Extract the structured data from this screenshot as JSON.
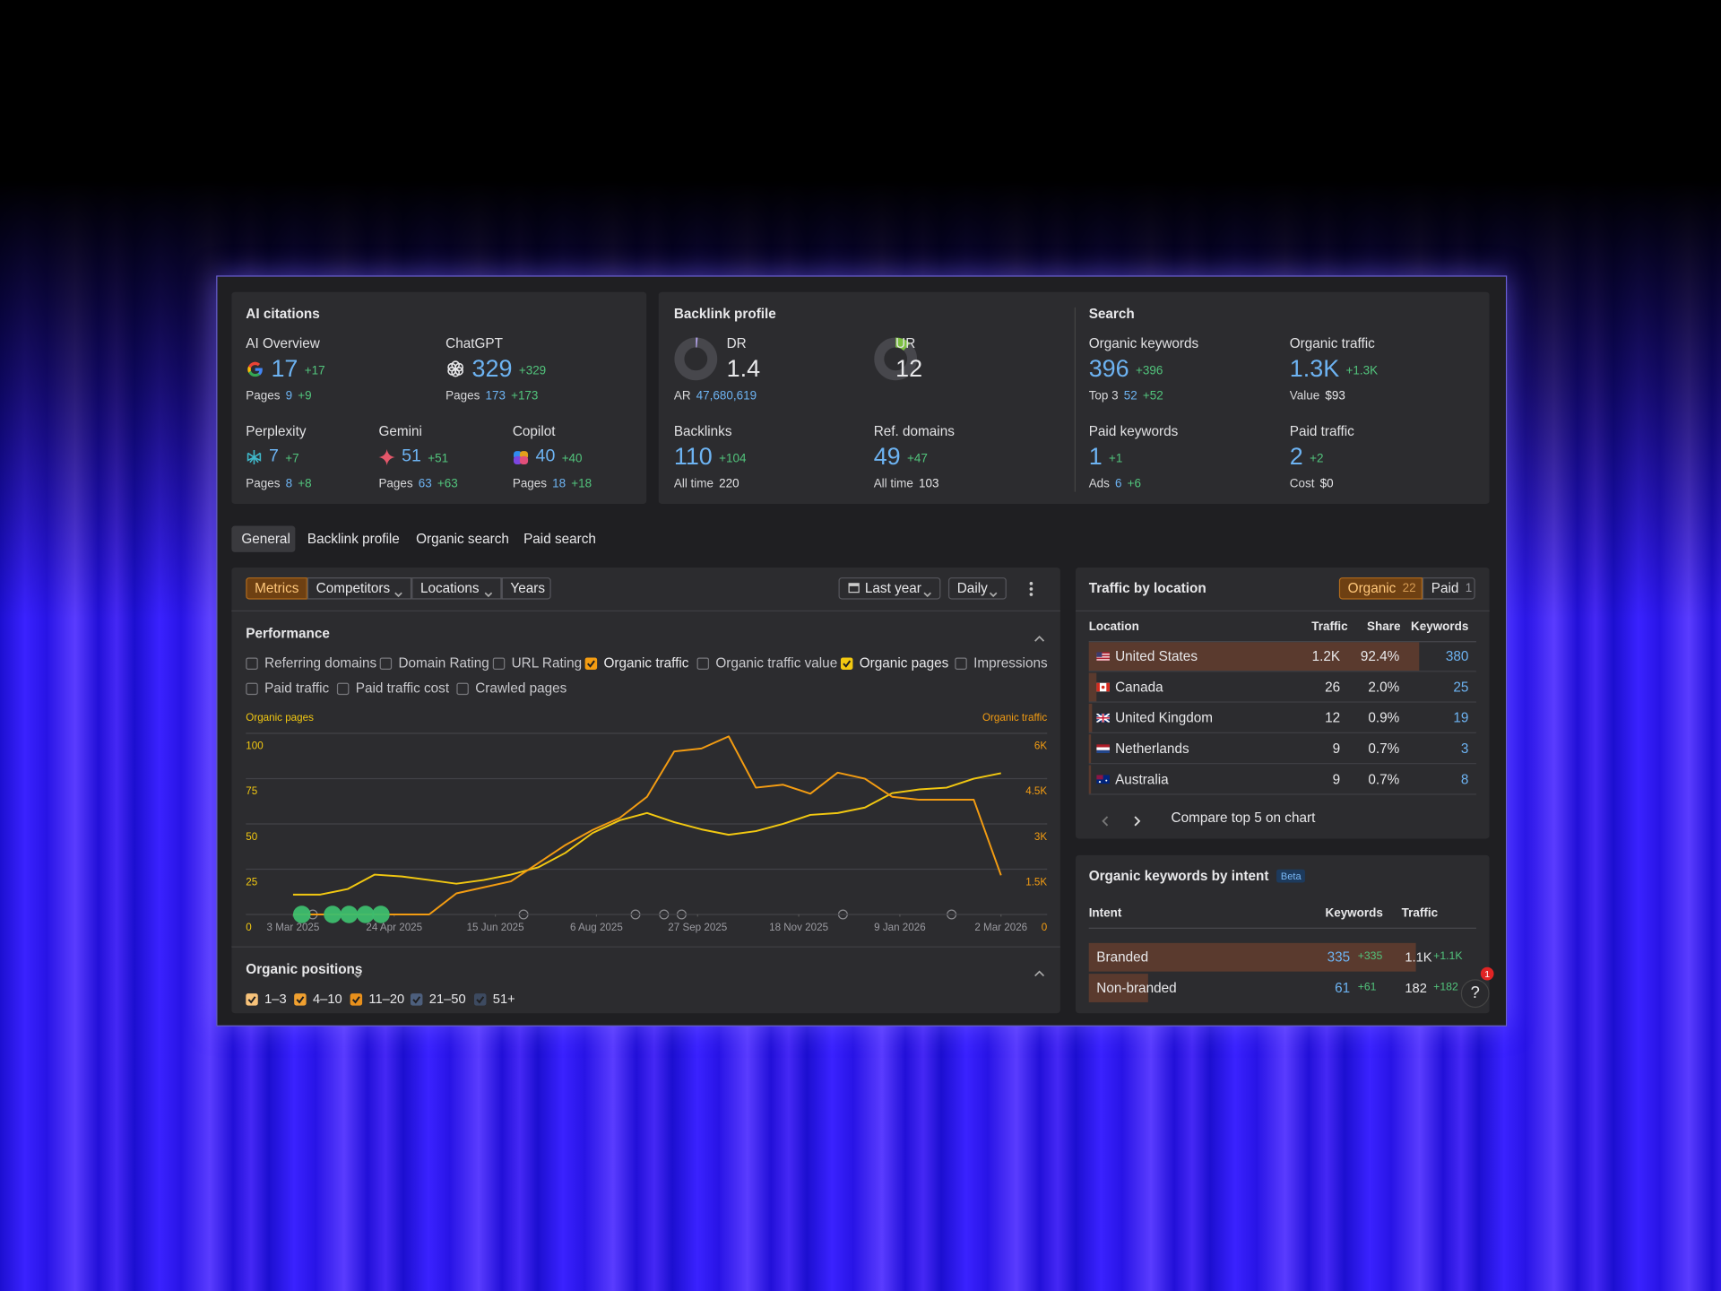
{
  "ai_citations": {
    "title": "AI citations",
    "items": [
      {
        "name": "AI Overview",
        "value": "17",
        "delta": "+17",
        "sub_label": "Pages",
        "sub_value": "9",
        "sub_delta": "+9"
      },
      {
        "name": "ChatGPT",
        "value": "329",
        "delta": "+329",
        "sub_label": "Pages",
        "sub_value": "173",
        "sub_delta": "+173"
      },
      {
        "name": "Perplexity",
        "value": "7",
        "delta": "+7",
        "sub_label": "Pages",
        "sub_value": "8",
        "sub_delta": "+8"
      },
      {
        "name": "Gemini",
        "value": "51",
        "delta": "+51",
        "sub_label": "Pages",
        "sub_value": "63",
        "sub_delta": "+63"
      },
      {
        "name": "Copilot",
        "value": "40",
        "delta": "+40",
        "sub_label": "Pages",
        "sub_value": "18",
        "sub_delta": "+18"
      }
    ]
  },
  "backlink_profile": {
    "title": "Backlink profile",
    "items": [
      {
        "name": "DR",
        "value": "1.4",
        "sub_label": "AR",
        "sub_value": "47,680,619"
      },
      {
        "name": "UR",
        "value": "12"
      },
      {
        "name": "Backlinks",
        "value": "110",
        "delta": "+104",
        "sub_label": "All time",
        "sub_value": "220"
      },
      {
        "name": "Ref. domains",
        "value": "49",
        "delta": "+47",
        "sub_label": "All time",
        "sub_value": "103"
      }
    ]
  },
  "search": {
    "title": "Search",
    "items": [
      {
        "name": "Organic keywords",
        "value": "396",
        "delta": "+396",
        "sub_label": "Top 3",
        "sub_value": "52",
        "sub_delta": "+52"
      },
      {
        "name": "Organic traffic",
        "value": "1.3K",
        "delta": "+1.3K",
        "sub_label": "Value",
        "sub_value": "$93"
      },
      {
        "name": "Paid keywords",
        "value": "1",
        "delta": "+1",
        "sub_label": "Ads",
        "sub_value": "6",
        "sub_delta": "+6"
      },
      {
        "name": "Paid traffic",
        "value": "2",
        "delta": "+2",
        "sub_label": "Cost",
        "sub_value": "$0"
      }
    ]
  },
  "tabs": [
    "General",
    "Backlink profile",
    "Organic search",
    "Paid search"
  ],
  "toolbar": {
    "buttons": [
      "Metrics",
      "Competitors",
      "Locations",
      "Years"
    ],
    "period": "Last year",
    "interval": "Daily"
  },
  "performance": {
    "title": "Performance",
    "metrics": [
      {
        "label": "Referring domains",
        "checked": false
      },
      {
        "label": "Domain Rating",
        "checked": false
      },
      {
        "label": "URL Rating",
        "checked": false
      },
      {
        "label": "Organic traffic",
        "checked": true,
        "color": "#f39c12"
      },
      {
        "label": "Organic traffic value",
        "checked": false
      },
      {
        "label": "Organic pages",
        "checked": true,
        "color": "#f2c811"
      },
      {
        "label": "Impressions",
        "checked": false
      },
      {
        "label": "Paid traffic",
        "checked": false
      },
      {
        "label": "Paid traffic cost",
        "checked": false
      },
      {
        "label": "Crawled pages",
        "checked": false
      }
    ]
  },
  "chart_data": {
    "type": "line",
    "x": [
      "2025-03-03",
      "2025-03-17",
      "2025-03-31",
      "2025-04-14",
      "2025-04-28",
      "2025-05-12",
      "2025-05-26",
      "2025-06-09",
      "2025-06-23",
      "2025-07-07",
      "2025-07-21",
      "2025-08-04",
      "2025-08-18",
      "2025-09-01",
      "2025-09-15",
      "2025-09-29",
      "2025-10-13",
      "2025-10-27",
      "2025-11-10",
      "2025-11-24",
      "2025-12-08",
      "2025-12-22",
      "2026-01-05",
      "2026-01-19",
      "2026-02-02",
      "2026-02-16",
      "2026-03-02"
    ],
    "series": [
      {
        "name": "Organic pages",
        "color": "#f2c811",
        "values": [
          11,
          11,
          14,
          22,
          21,
          19,
          17,
          19,
          22,
          26,
          34,
          45,
          52,
          56,
          51,
          47,
          44,
          46,
          50,
          55,
          56,
          59,
          67,
          69,
          70,
          75,
          78
        ]
      },
      {
        "name": "Organic traffic",
        "color": "#f39c12",
        "axis": "y2",
        "values": [
          0,
          0,
          0,
          0,
          0,
          0,
          700,
          900,
          1100,
          1700,
          2300,
          2800,
          3200,
          3900,
          5400,
          5500,
          5900,
          4200,
          4300,
          4000,
          4700,
          4500,
          3900,
          3800,
          3800,
          3800,
          1300
        ]
      }
    ],
    "xlim": [
      "2025-03-03",
      "2026-03-02"
    ],
    "xticks": [
      {
        "value": "2025-03-03",
        "label": "3 Mar 2025"
      },
      {
        "value": "2025-04-24",
        "label": "24 Apr 2025"
      },
      {
        "value": "2025-06-15",
        "label": "15 Jun 2025"
      },
      {
        "value": "2025-08-06",
        "label": "6 Aug 2025"
      },
      {
        "value": "2025-09-27",
        "label": "27 Sep 2025"
      },
      {
        "value": "2025-11-18",
        "label": "18 Nov 2025"
      },
      {
        "value": "2026-01-09",
        "label": "9 Jan 2026"
      },
      {
        "value": "2026-03-02",
        "label": "2 Mar 2026"
      }
    ],
    "ylim": [
      0,
      100
    ],
    "yticks": [
      0,
      25,
      50,
      75,
      100
    ],
    "y2lim": [
      0,
      6000
    ],
    "y2ticks": [
      0,
      {
        "value": 1500,
        "label": "1.5K"
      },
      {
        "value": 3000,
        "label": "3K"
      },
      {
        "value": 4500,
        "label": "4.5K"
      },
      {
        "value": 6000,
        "label": "6K"
      }
    ],
    "grid": true
  },
  "organic_positions": {
    "title": "Organic positions",
    "items": [
      {
        "label": "1–3",
        "color": "#f7c27a"
      },
      {
        "label": "4–10",
        "color": "#f0a030"
      },
      {
        "label": "11–20",
        "color": "#e8901c"
      },
      {
        "label": "21–50",
        "color": "#4d5f7d"
      },
      {
        "label": "51+",
        "color": "#3d4a60"
      }
    ]
  },
  "traffic_by_location": {
    "title": "Traffic by location",
    "toggle": [
      {
        "label": "Organic",
        "count": "22"
      },
      {
        "label": "Paid",
        "count": "1"
      }
    ],
    "columns": [
      "Location",
      "Traffic",
      "Share",
      "Keywords"
    ],
    "rows": [
      [
        "United States",
        "1.2K",
        "92.4%",
        "380"
      ],
      [
        "Canada",
        "26",
        "2.0%",
        "25"
      ],
      [
        "United Kingdom",
        "12",
        "0.9%",
        "19"
      ],
      [
        "Netherlands",
        "9",
        "0.7%",
        "3"
      ],
      [
        "Australia",
        "9",
        "0.7%",
        "8"
      ]
    ],
    "footer": "Compare top 5 on chart"
  },
  "keywords_by_intent": {
    "title": "Organic keywords by intent",
    "badge": "Beta",
    "columns": [
      "Intent",
      "Keywords",
      "Traffic"
    ],
    "rows": [
      {
        "intent": "Branded",
        "keywords": "335",
        "keywords_delta": "+335",
        "traffic": "1.1K",
        "traffic_delta": "+1.1K"
      },
      {
        "intent": "Non-branded",
        "keywords": "61",
        "keywords_delta": "+61",
        "traffic": "182",
        "traffic_delta": "+182"
      }
    ]
  },
  "help": {
    "label": "?",
    "badge": "1"
  }
}
